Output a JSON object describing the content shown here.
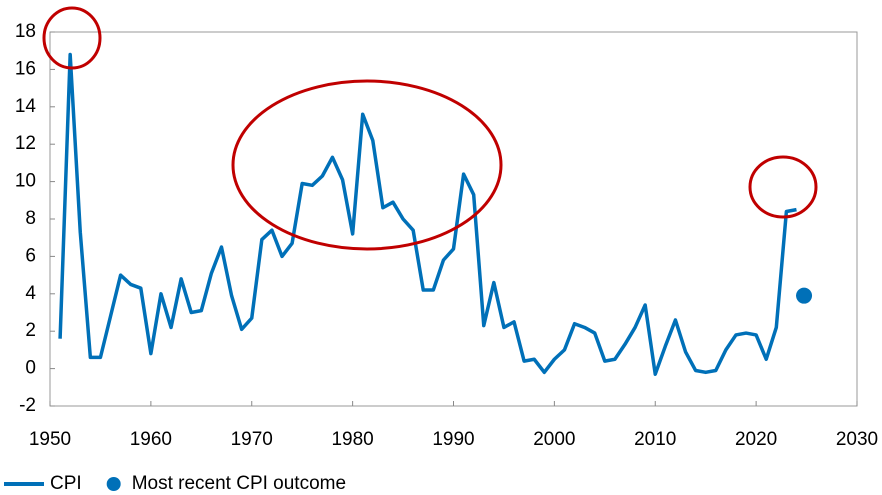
{
  "chart_data": {
    "type": "line",
    "series": [
      {
        "name": "CPI",
        "color": "#0070b8",
        "x": [
          1951,
          1952,
          1953,
          1954,
          1955,
          1956,
          1957,
          1958,
          1959,
          1960,
          1961,
          1962,
          1963,
          1964,
          1965,
          1966,
          1967,
          1968,
          1969,
          1970,
          1971,
          1972,
          1973,
          1974,
          1975,
          1976,
          1977,
          1978,
          1979,
          1980,
          1981,
          1982,
          1983,
          1984,
          1985,
          1986,
          1987,
          1988,
          1989,
          1990,
          1991,
          1992,
          1993,
          1994,
          1995,
          1996,
          1997,
          1998,
          1999,
          2000,
          2001,
          2002,
          2003,
          2004,
          2005,
          2006,
          2007,
          2008,
          2009,
          2010,
          2011,
          2012,
          2013,
          2014,
          2015,
          2016,
          2017,
          2018,
          2019,
          2020,
          2021,
          2022,
          2023,
          2024
        ],
        "values": [
          1.6,
          16.8,
          7.3,
          0.6,
          0.6,
          2.8,
          5.0,
          4.5,
          4.3,
          0.8,
          4.0,
          2.2,
          4.8,
          3.0,
          3.1,
          5.1,
          6.5,
          3.9,
          2.1,
          2.7,
          6.9,
          7.4,
          6.0,
          6.7,
          9.9,
          9.8,
          10.3,
          11.3,
          10.1,
          7.2,
          13.6,
          12.2,
          8.6,
          8.9,
          8.0,
          7.4,
          4.2,
          4.2,
          5.8,
          6.4,
          10.4,
          9.3,
          2.3,
          4.6,
          2.2,
          2.5,
          0.4,
          0.5,
          -0.2,
          0.5,
          1.0,
          2.4,
          2.2,
          1.9,
          0.4,
          0.5,
          1.3,
          2.2,
          3.4,
          -0.3,
          1.2,
          2.6,
          0.9,
          -0.1,
          -0.2,
          -0.1,
          1.0,
          1.8,
          1.9,
          1.8,
          0.5,
          2.2,
          8.4,
          8.5
        ]
      },
      {
        "name": "Most recent CPI outcome",
        "color": "#0070b8",
        "style": "marker",
        "x": [
          2024.75
        ],
        "values": [
          3.9
        ]
      }
    ],
    "xlim": [
      1950,
      2030
    ],
    "xticks": [
      1950,
      1960,
      1970,
      1980,
      1990,
      2000,
      2010,
      2020,
      2030
    ],
    "ylim": [
      -2,
      18
    ],
    "yticks": [
      -2,
      0,
      2,
      4,
      6,
      8,
      10,
      12,
      14,
      16,
      18
    ],
    "grid": false
  }
}
